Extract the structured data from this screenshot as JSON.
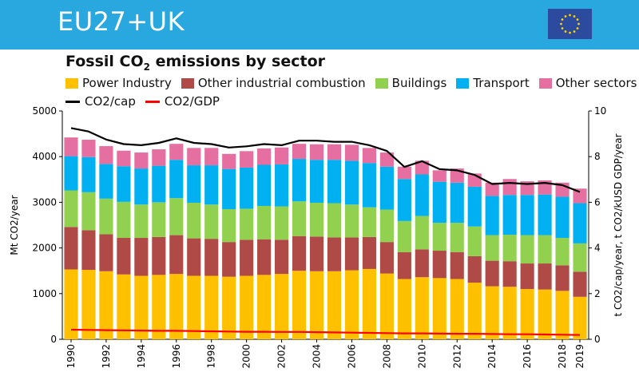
{
  "header": {
    "title": "EU27+UK"
  },
  "chart_data": {
    "type": "stacked-bar-with-lines",
    "title": "Fossil CO2 emissions by sector",
    "title_main": "Fossil CO",
    "title_sub": "2",
    "title_tail": " emissions by sector",
    "ylabel_left": "Mt CO2/year",
    "ylabel_right": "t CO2/cap/year, t CO2/kUSD GDP/year",
    "ylim_left": [
      0,
      5000
    ],
    "ylim_right": [
      0,
      10
    ],
    "left_ticks": [
      "0",
      "1000",
      "2000",
      "3000",
      "4000",
      "5000"
    ],
    "right_ticks": [
      "0",
      "2",
      "4",
      "6",
      "8",
      "10"
    ],
    "x_tick_labels": [
      "1990",
      "1992",
      "1994",
      "1996",
      "1998",
      "2000",
      "2002",
      "2004",
      "2006",
      "2008",
      "2010",
      "2012",
      "2014",
      "2016",
      "2018",
      "2019"
    ],
    "categories": [
      1990,
      1991,
      1992,
      1993,
      1994,
      1995,
      1996,
      1997,
      1998,
      1999,
      2000,
      2001,
      2002,
      2003,
      2004,
      2005,
      2006,
      2007,
      2008,
      2009,
      2010,
      2011,
      2012,
      2013,
      2014,
      2015,
      2016,
      2017,
      2018,
      2019
    ],
    "series": [
      {
        "name": "Power Industry",
        "color": "#ffc000",
        "values": [
          1530,
          1520,
          1490,
          1420,
          1390,
          1410,
          1430,
          1390,
          1390,
          1370,
          1390,
          1410,
          1430,
          1500,
          1490,
          1490,
          1510,
          1540,
          1440,
          1320,
          1360,
          1340,
          1320,
          1240,
          1160,
          1150,
          1100,
          1090,
          1060,
          930
        ]
      },
      {
        "name": "Other industrial combustion",
        "color": "#b04a46",
        "values": [
          930,
          870,
          810,
          800,
          830,
          830,
          850,
          820,
          810,
          760,
          790,
          780,
          750,
          760,
          760,
          740,
          720,
          700,
          690,
          590,
          610,
          600,
          590,
          580,
          560,
          560,
          560,
          570,
          560,
          550
        ]
      },
      {
        "name": "Buildings",
        "color": "#92d050",
        "values": [
          800,
          830,
          780,
          790,
          730,
          760,
          810,
          780,
          750,
          720,
          680,
          730,
          730,
          760,
          740,
          750,
          720,
          650,
          710,
          680,
          730,
          610,
          640,
          650,
          560,
          580,
          620,
          620,
          600,
          620
        ]
      },
      {
        "name": "Transport",
        "color": "#00b0f0",
        "values": [
          750,
          770,
          760,
          780,
          790,
          800,
          840,
          820,
          860,
          880,
          900,
          900,
          920,
          930,
          940,
          950,
          960,
          970,
          940,
          920,
          910,
          900,
          880,
          870,
          860,
          870,
          880,
          890,
          900,
          880
        ]
      },
      {
        "name": "Other sectors",
        "color": "#e56fa0",
        "values": [
          410,
          380,
          390,
          340,
          350,
          360,
          350,
          380,
          380,
          330,
          360,
          360,
          370,
          330,
          340,
          340,
          350,
          330,
          310,
          270,
          300,
          250,
          310,
          290,
          290,
          350,
          300,
          310,
          310,
          320
        ]
      }
    ],
    "lines": [
      {
        "name": "CO2/cap",
        "color": "#000000",
        "values": [
          9.25,
          9.1,
          8.75,
          8.55,
          8.5,
          8.6,
          8.8,
          8.6,
          8.55,
          8.4,
          8.45,
          8.55,
          8.5,
          8.7,
          8.7,
          8.65,
          8.65,
          8.5,
          8.25,
          7.55,
          7.8,
          7.45,
          7.4,
          7.2,
          6.8,
          6.85,
          6.8,
          6.85,
          6.75,
          6.45
        ]
      },
      {
        "name": "CO2/GDP",
        "color": "#ff0000",
        "values": [
          0.42,
          0.41,
          0.4,
          0.39,
          0.38,
          0.37,
          0.37,
          0.36,
          0.35,
          0.34,
          0.33,
          0.33,
          0.32,
          0.32,
          0.31,
          0.3,
          0.29,
          0.28,
          0.27,
          0.26,
          0.26,
          0.25,
          0.24,
          0.24,
          0.23,
          0.22,
          0.22,
          0.21,
          0.2,
          0.19
        ]
      }
    ],
    "legend_rows": [
      [
        "Power Industry",
        "Other industrial combustion",
        "Buildings",
        "Transport",
        "Other sectors"
      ],
      [
        "CO2/cap",
        "CO2/GDP"
      ]
    ]
  }
}
